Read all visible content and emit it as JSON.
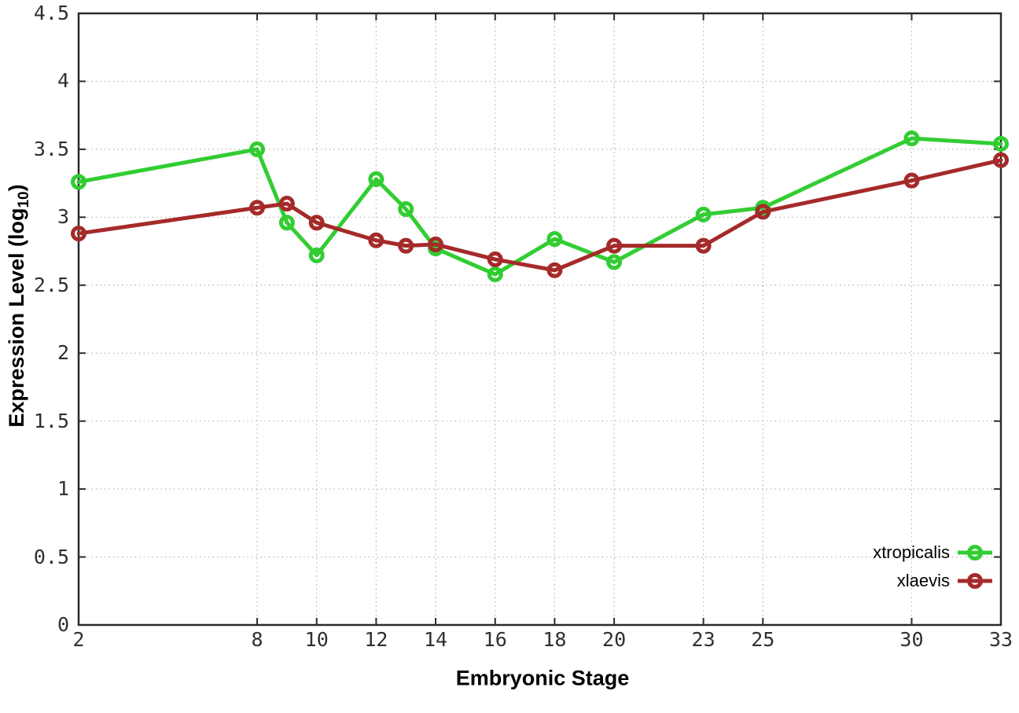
{
  "chart_data": {
    "type": "line",
    "title": "",
    "xlabel": "Embryonic Stage",
    "ylabel": "Expression Level (log10)",
    "xlim": [
      2,
      33
    ],
    "ylim": [
      0,
      4.5
    ],
    "grid": true,
    "legend_position": "bottom-right",
    "x": [
      2,
      8,
      9,
      10,
      12,
      13,
      14,
      16,
      18,
      20,
      23,
      25,
      30,
      33
    ],
    "xtick_values": [
      2,
      8,
      10,
      12,
      14,
      16,
      18,
      20,
      23,
      25,
      30,
      33
    ],
    "xtick_labels": [
      "2",
      "8",
      "10",
      "12",
      "14",
      "16",
      "18",
      "20",
      "23",
      "25",
      "30",
      "33"
    ],
    "ytick_values": [
      0,
      0.5,
      1,
      1.5,
      2,
      2.5,
      3,
      3.5,
      4,
      4.5
    ],
    "ytick_labels": [
      "0",
      "0.5",
      "1",
      "1.5",
      "2",
      "2.5",
      "3",
      "3.5",
      "4",
      "4.5"
    ],
    "series": [
      {
        "name": "xtropicalis",
        "color": "#32cd32",
        "values": [
          3.26,
          3.5,
          2.96,
          2.72,
          3.28,
          3.06,
          2.77,
          2.58,
          2.84,
          2.67,
          3.02,
          3.07,
          3.58,
          3.54
        ]
      },
      {
        "name": "xlaevis",
        "color": "#a52a2a",
        "values": [
          2.88,
          3.07,
          3.1,
          2.96,
          2.83,
          2.79,
          2.8,
          2.69,
          2.61,
          2.79,
          2.79,
          3.04,
          3.27,
          3.42
        ]
      }
    ]
  },
  "labels": {
    "xlabel": "Embryonic Stage",
    "ylabel_prefix": "Expression Level (log",
    "ylabel_sub": "10",
    "ylabel_suffix": ")"
  },
  "colors": {
    "grid": "#b3b3b3",
    "border": "#2b2b2b",
    "tick_text": "#303030"
  }
}
